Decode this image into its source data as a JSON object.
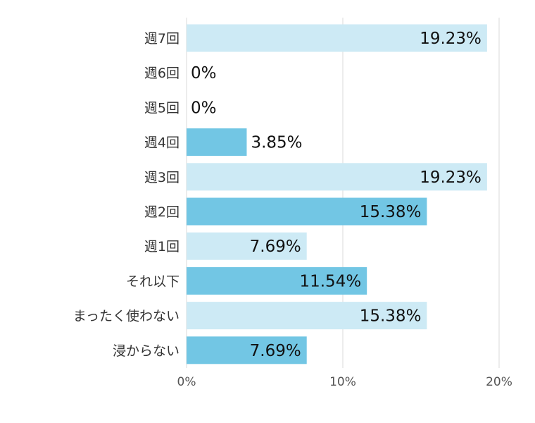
{
  "chart_data": {
    "type": "bar",
    "orientation": "horizontal",
    "categories": [
      "週7回",
      "週6回",
      "週5回",
      "週4回",
      "週3回",
      "週2回",
      "週1回",
      "それ以下",
      "まったく使わない",
      "浸からない"
    ],
    "values": [
      19.23,
      0,
      0,
      3.85,
      19.23,
      15.38,
      7.69,
      11.54,
      15.38,
      7.69
    ],
    "value_labels": [
      "19.23%",
      "0%",
      "0%",
      "3.85%",
      "19.23%",
      "15.38%",
      "7.69%",
      "11.54%",
      "15.38%",
      "7.69%"
    ],
    "xlim": [
      0,
      20
    ],
    "xticks": [
      0,
      10,
      20
    ],
    "xtick_labels": [
      "0%",
      "10%",
      "20%"
    ],
    "grid": true,
    "legend": "none",
    "colors": {
      "light": "#cdeaf5",
      "dark": "#72c6e4",
      "grid": "#d9d9d9"
    },
    "bar_colors": [
      "light",
      "light",
      "light",
      "dark",
      "light",
      "dark",
      "light",
      "dark",
      "light",
      "dark"
    ]
  }
}
